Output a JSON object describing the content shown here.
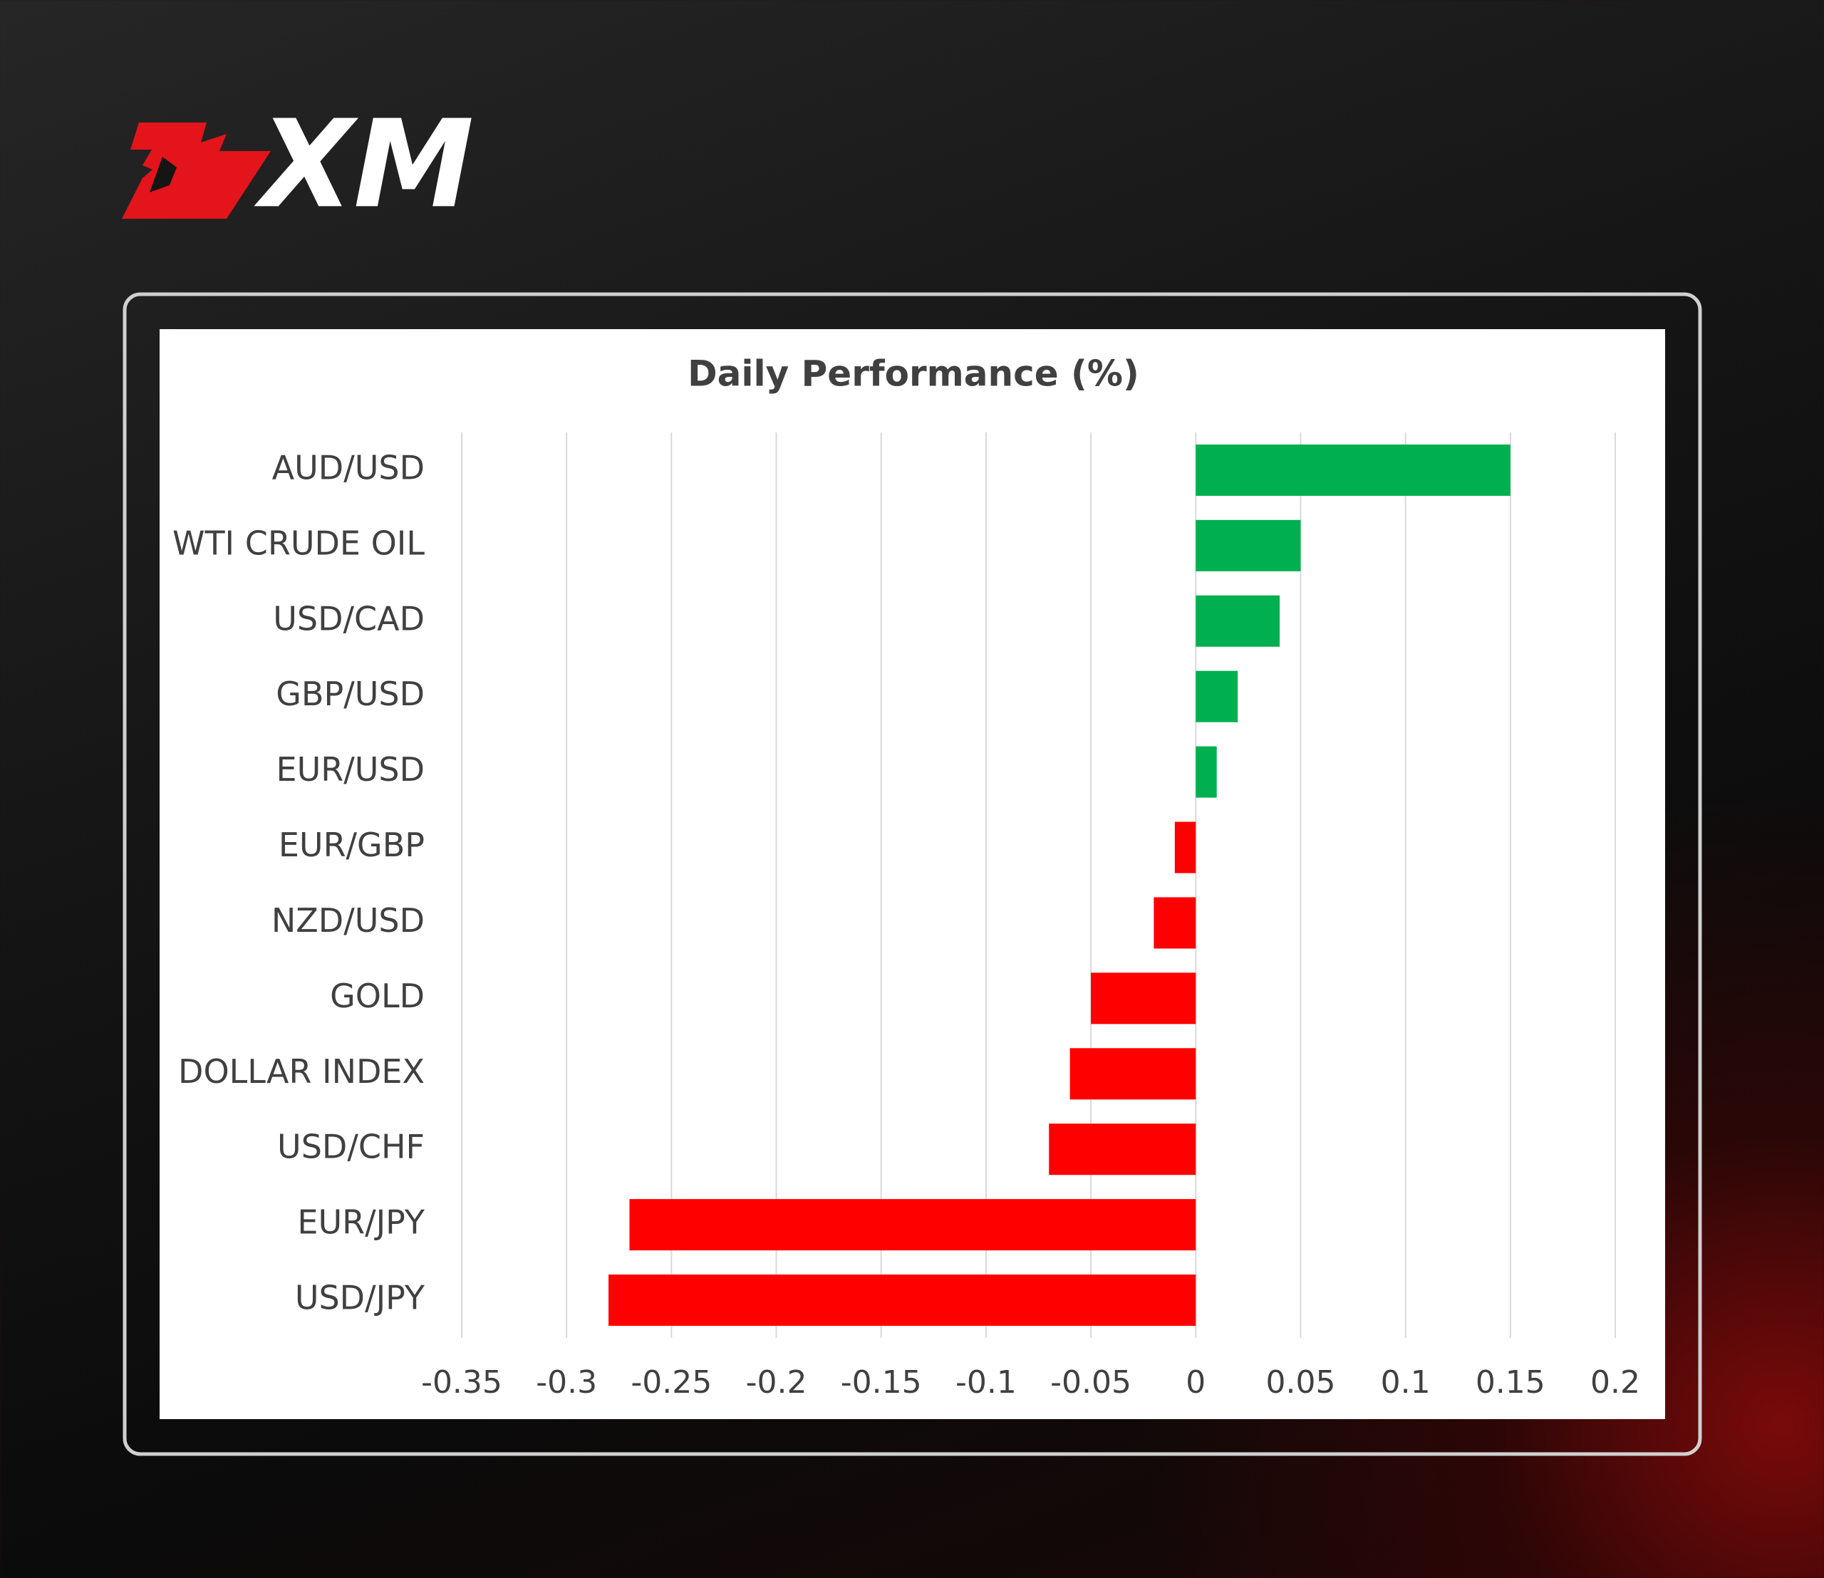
{
  "logo": "XM",
  "chart_data": {
    "type": "bar",
    "title": "Daily Performance (%)",
    "categories": [
      "AUD/USD",
      "WTI CRUDE OIL",
      "USD/CAD",
      "GBP/USD",
      "EUR/USD",
      "EUR/GBP",
      "NZD/USD",
      "GOLD",
      "DOLLAR INDEX",
      "USD/CHF",
      "EUR/JPY",
      "USD/JPY"
    ],
    "values": [
      0.15,
      0.05,
      0.04,
      0.02,
      0.01,
      -0.01,
      -0.02,
      -0.05,
      -0.06,
      -0.07,
      -0.27,
      -0.28
    ],
    "colors": [
      "#00b050",
      "#00b050",
      "#00b050",
      "#00b050",
      "#00b050",
      "#ff0000",
      "#ff0000",
      "#ff0000",
      "#ff0000",
      "#ff0000",
      "#ff0000",
      "#ff0000"
    ],
    "xlim": [
      -0.35,
      0.2
    ],
    "xticks": [
      -0.35,
      -0.3,
      -0.25,
      -0.2,
      -0.15,
      -0.1,
      -0.05,
      0,
      0.05,
      0.1,
      0.15,
      0.2
    ],
    "grid": true
  }
}
